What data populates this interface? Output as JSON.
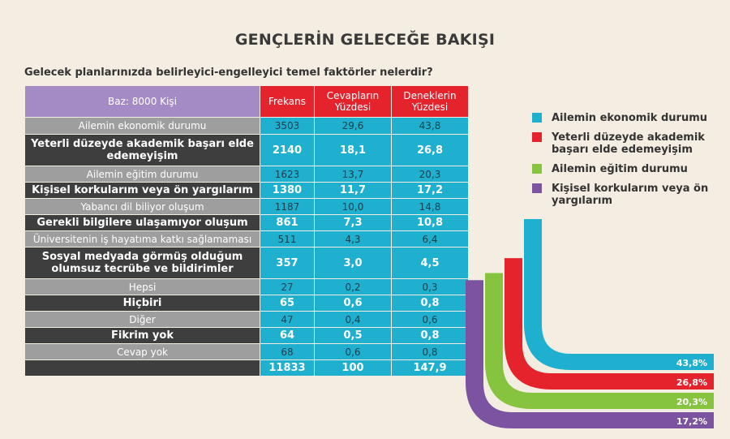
{
  "title": "GENÇLERİN GELECEĞE BAKIŞI",
  "subtitle": "Gelecek planlarınızda belirleyici-engelleyici temel faktörler nelerdir?",
  "table": {
    "base": "Baz: 8000 Kişi",
    "col1": "Frekans",
    "col2_l1": "Cevapların",
    "col2_l2": "Yüzdesi",
    "col3_l1": "Deneklerin",
    "col3_l2": "Yüzdesi",
    "rows": [
      {
        "label": "Ailemin ekonomik durumu",
        "freq": "3503",
        "pct_ans": "29,6",
        "pct_resp": "43,8",
        "style": "light",
        "h": 20
      },
      {
        "label": "Yeterli düzeyde akademik başarı elde edemeyişim",
        "freq": "2140",
        "pct_ans": "18,1",
        "pct_resp": "26,8",
        "style": "dark",
        "h": 38
      },
      {
        "label": "Ailemin eğitim durumu",
        "freq": "1623",
        "pct_ans": "13,7",
        "pct_resp": "20,3",
        "style": "light",
        "h": 19
      },
      {
        "label": "Kişisel korkularım veya ön yargılarım",
        "freq": "1380",
        "pct_ans": "11,7",
        "pct_resp": "17,2",
        "style": "dark",
        "h": 19
      },
      {
        "label": "Yabancı dil biliyor oluşum",
        "freq": "1187",
        "pct_ans": "10,0",
        "pct_resp": "14,8",
        "style": "light",
        "h": 19
      },
      {
        "label": "Gerekli bilgilere ulaşamıyor oluşum",
        "freq": "861",
        "pct_ans": "7,3",
        "pct_resp": "10,8",
        "style": "dark",
        "h": 19
      },
      {
        "label": "Üniversitenin iş hayatıma katkı sağlamaması",
        "freq": "511",
        "pct_ans": "4,3",
        "pct_resp": "6,4",
        "style": "light",
        "h": 19
      },
      {
        "label": "Sosyal medyada görmüş olduğum olumsuz tecrübe ve bildirimler",
        "freq": "357",
        "pct_ans": "3,0",
        "pct_resp": "4,5",
        "style": "dark",
        "h": 38
      },
      {
        "label": "Hepsi",
        "freq": "27",
        "pct_ans": "0,2",
        "pct_resp": "0,3",
        "style": "light",
        "h": 19
      },
      {
        "label": "Hiçbiri",
        "freq": "65",
        "pct_ans": "0,6",
        "pct_resp": "0,8",
        "style": "dark",
        "h": 19
      },
      {
        "label": "Diğer",
        "freq": "47",
        "pct_ans": "0,4",
        "pct_resp": "0,6",
        "style": "light",
        "h": 19
      },
      {
        "label": "Fikrim yok",
        "freq": "64",
        "pct_ans": "0,5",
        "pct_resp": "0,8",
        "style": "dark",
        "h": 19
      },
      {
        "label": "Cevap yok",
        "freq": "68",
        "pct_ans": "0,6",
        "pct_resp": "0,8",
        "style": "light",
        "h": 19
      }
    ],
    "total": {
      "label": "",
      "freq": "11833",
      "pct_ans": "100",
      "pct_resp": "147,9"
    }
  },
  "chart_data": {
    "type": "bar",
    "categories": [
      "Ailemin ekonomik durumu",
      "Yeterli düzeyde akademik başarı elde edemeyişim",
      "Ailemin eğitim durumu",
      "Kişisel korkularım veya ön yargılarım"
    ],
    "values": [
      43.8,
      26.8,
      20.3,
      17.2
    ],
    "value_labels": [
      "43,8%",
      "26,8%",
      "20,3%",
      "17,2%"
    ],
    "colors": [
      "#1fb0cf",
      "#e5232d",
      "#86c440",
      "#7b53a0"
    ],
    "legend_position": "top-right"
  }
}
